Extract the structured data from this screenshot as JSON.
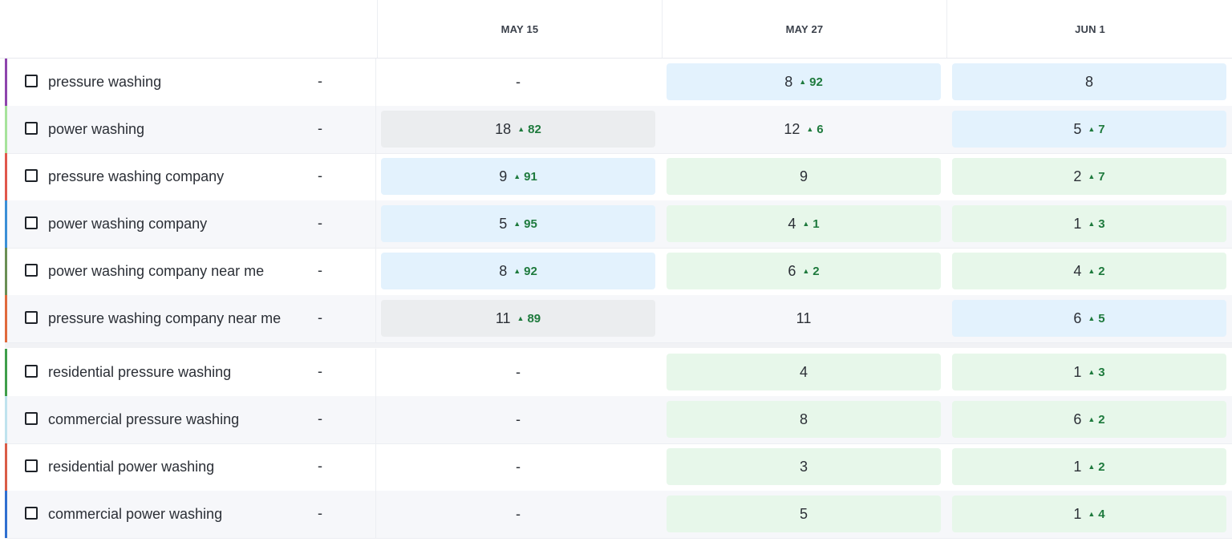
{
  "columns": [
    "MAY 15",
    "MAY 27",
    "JUN 1"
  ],
  "rows": [
    {
      "keyword": "pressure washing",
      "base": "-",
      "accent": "#8e44ad",
      "cells": [
        {
          "value": "-",
          "change": "",
          "bg": "none"
        },
        {
          "value": "8",
          "change": "92",
          "bg": "blue"
        },
        {
          "value": "8",
          "change": "",
          "bg": "blue"
        }
      ]
    },
    {
      "keyword": "power washing",
      "base": "-",
      "accent": "#a6e39b",
      "cells": [
        {
          "value": "18",
          "change": "82",
          "bg": "gray"
        },
        {
          "value": "12",
          "change": "6",
          "bg": "none"
        },
        {
          "value": "5",
          "change": "7",
          "bg": "blue"
        }
      ]
    },
    {
      "keyword": "pressure washing company",
      "base": "-",
      "accent": "#e0574c",
      "cells": [
        {
          "value": "9",
          "change": "91",
          "bg": "blue"
        },
        {
          "value": "9",
          "change": "",
          "bg": "green"
        },
        {
          "value": "2",
          "change": "7",
          "bg": "green"
        }
      ]
    },
    {
      "keyword": "power washing company",
      "base": "-",
      "accent": "#3b8fd6",
      "cells": [
        {
          "value": "5",
          "change": "95",
          "bg": "blue"
        },
        {
          "value": "4",
          "change": "1",
          "bg": "green"
        },
        {
          "value": "1",
          "change": "3",
          "bg": "green"
        }
      ]
    },
    {
      "keyword": "power washing company near me",
      "base": "-",
      "accent": "#6a8f55",
      "cells": [
        {
          "value": "8",
          "change": "92",
          "bg": "blue"
        },
        {
          "value": "6",
          "change": "2",
          "bg": "green"
        },
        {
          "value": "4",
          "change": "2",
          "bg": "green"
        }
      ]
    },
    {
      "keyword": "pressure washing company near me",
      "base": "-",
      "accent": "#e06a3c",
      "cells": [
        {
          "value": "11",
          "change": "89",
          "bg": "gray"
        },
        {
          "value": "11",
          "change": "",
          "bg": "none"
        },
        {
          "value": "6",
          "change": "5",
          "bg": "blue"
        }
      ]
    },
    {
      "keyword": "residential pressure washing",
      "base": "-",
      "accent": "#3f9e4a",
      "cells": [
        {
          "value": "-",
          "change": "",
          "bg": "none"
        },
        {
          "value": "4",
          "change": "",
          "bg": "green"
        },
        {
          "value": "1",
          "change": "3",
          "bg": "green"
        }
      ]
    },
    {
      "keyword": "commercial pressure washing",
      "base": "-",
      "accent": "#bfe3ee",
      "cells": [
        {
          "value": "-",
          "change": "",
          "bg": "none"
        },
        {
          "value": "8",
          "change": "",
          "bg": "green"
        },
        {
          "value": "6",
          "change": "2",
          "bg": "green"
        }
      ]
    },
    {
      "keyword": "residential power washing",
      "base": "-",
      "accent": "#d95c47",
      "cells": [
        {
          "value": "-",
          "change": "",
          "bg": "none"
        },
        {
          "value": "3",
          "change": "",
          "bg": "green"
        },
        {
          "value": "1",
          "change": "2",
          "bg": "green"
        }
      ]
    },
    {
      "keyword": "commercial power washing",
      "base": "-",
      "accent": "#2f6fd0",
      "cells": [
        {
          "value": "-",
          "change": "",
          "bg": "none"
        },
        {
          "value": "5",
          "change": "",
          "bg": "green"
        },
        {
          "value": "1",
          "change": "4",
          "bg": "green"
        }
      ]
    }
  ]
}
